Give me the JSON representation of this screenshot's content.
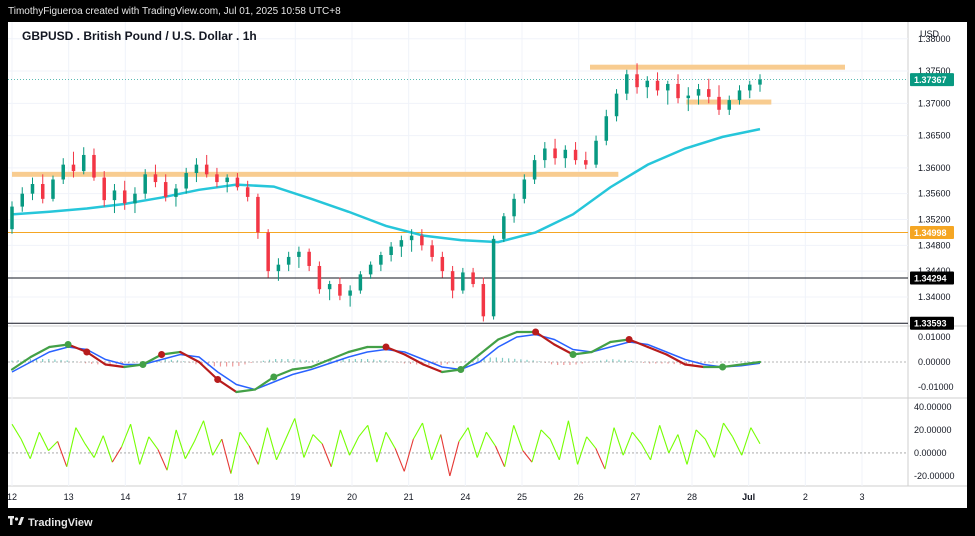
{
  "header": {
    "created_line": "TimothyFigueroa created with TradingView.com, Jul 01, 2025 10:58 UTC+8",
    "brand": "TradingView"
  },
  "chart_data": {
    "type": "candlestick",
    "title": "GBPUSD . British Pound / U.S. Dollar . 1h",
    "currency_label": "USD",
    "price_axis": {
      "range": [
        1.3355,
        1.3826
      ],
      "ticks": [
        "1.38000",
        "1.37500",
        "1.37000",
        "1.36500",
        "1.36000",
        "1.35600",
        "1.35200",
        "1.34800",
        "1.34400",
        "1.34000"
      ],
      "tick_values": [
        1.38,
        1.375,
        1.37,
        1.365,
        1.36,
        1.356,
        1.352,
        1.348,
        1.344,
        1.34
      ]
    },
    "price_labels": [
      {
        "text": "1.37367",
        "value": 1.37367,
        "color": "#089981"
      },
      {
        "text": "1.34998",
        "value": 1.34998,
        "color": "#f5a623"
      },
      {
        "text": "1.34294",
        "value": 1.34294,
        "color": "#000000"
      },
      {
        "text": "1.33593",
        "value": 1.33593,
        "color": "#000000"
      }
    ],
    "x_axis": {
      "labels": [
        "12",
        "13",
        "14",
        "17",
        "18",
        "19",
        "20",
        "21",
        "24",
        "25",
        "26",
        "27",
        "28",
        "Jul",
        "2",
        "3"
      ],
      "positions": [
        0,
        1,
        2,
        3,
        4,
        5,
        6,
        7,
        8,
        9,
        10,
        11,
        12,
        13,
        14,
        15
      ],
      "range": [
        0,
        15
      ]
    },
    "candles_ohlc": [
      [
        1.3505,
        1.3548,
        1.3498,
        1.354
      ],
      [
        1.354,
        1.357,
        1.3532,
        1.356
      ],
      [
        1.356,
        1.3585,
        1.355,
        1.3575
      ],
      [
        1.3575,
        1.359,
        1.3545,
        1.3552
      ],
      [
        1.3552,
        1.3588,
        1.3548,
        1.3582
      ],
      [
        1.3582,
        1.3615,
        1.3575,
        1.3605
      ],
      [
        1.3605,
        1.3625,
        1.3585,
        1.3595
      ],
      [
        1.3595,
        1.3632,
        1.359,
        1.362
      ],
      [
        1.362,
        1.363,
        1.358,
        1.3585
      ],
      [
        1.3585,
        1.3595,
        1.354,
        1.355
      ],
      [
        1.355,
        1.3575,
        1.353,
        1.3565
      ],
      [
        1.3565,
        1.358,
        1.3535,
        1.3545
      ],
      [
        1.3545,
        1.357,
        1.353,
        1.356
      ],
      [
        1.356,
        1.3598,
        1.3552,
        1.359
      ],
      [
        1.359,
        1.3605,
        1.357,
        1.3578
      ],
      [
        1.3578,
        1.359,
        1.3548,
        1.3555
      ],
      [
        1.3555,
        1.3575,
        1.354,
        1.3568
      ],
      [
        1.3568,
        1.36,
        1.356,
        1.3592
      ],
      [
        1.3592,
        1.3615,
        1.3578,
        1.3605
      ],
      [
        1.3605,
        1.362,
        1.3585,
        1.359
      ],
      [
        1.359,
        1.36,
        1.357,
        1.3578
      ],
      [
        1.3578,
        1.359,
        1.3562,
        1.3585
      ],
      [
        1.3585,
        1.3592,
        1.3565,
        1.357
      ],
      [
        1.357,
        1.358,
        1.3548,
        1.3555
      ],
      [
        1.3555,
        1.356,
        1.349,
        1.35
      ],
      [
        1.35,
        1.3505,
        1.343,
        1.344
      ],
      [
        1.344,
        1.346,
        1.3425,
        1.345
      ],
      [
        1.345,
        1.347,
        1.344,
        1.3462
      ],
      [
        1.3462,
        1.3478,
        1.3445,
        1.347
      ],
      [
        1.347,
        1.3475,
        1.344,
        1.3448
      ],
      [
        1.3448,
        1.3455,
        1.3405,
        1.3412
      ],
      [
        1.3412,
        1.3425,
        1.3395,
        1.342
      ],
      [
        1.342,
        1.343,
        1.3395,
        1.3402
      ],
      [
        1.3402,
        1.3418,
        1.3385,
        1.341
      ],
      [
        1.341,
        1.344,
        1.3405,
        1.3435
      ],
      [
        1.3435,
        1.3455,
        1.3428,
        1.345
      ],
      [
        1.345,
        1.347,
        1.344,
        1.3465
      ],
      [
        1.3465,
        1.3485,
        1.3455,
        1.3478
      ],
      [
        1.3478,
        1.3495,
        1.3462,
        1.3488
      ],
      [
        1.3488,
        1.3505,
        1.347,
        1.3495
      ],
      [
        1.3495,
        1.3505,
        1.3472,
        1.348
      ],
      [
        1.348,
        1.3488,
        1.3455,
        1.3462
      ],
      [
        1.3462,
        1.347,
        1.343,
        1.344
      ],
      [
        1.344,
        1.3448,
        1.3398,
        1.341
      ],
      [
        1.341,
        1.3445,
        1.3405,
        1.3438
      ],
      [
        1.3438,
        1.3445,
        1.3415,
        1.342
      ],
      [
        1.342,
        1.343,
        1.3362,
        1.337
      ],
      [
        1.337,
        1.3495,
        1.3365,
        1.349
      ],
      [
        1.349,
        1.353,
        1.3485,
        1.3525
      ],
      [
        1.3525,
        1.356,
        1.3515,
        1.3552
      ],
      [
        1.3552,
        1.359,
        1.3545,
        1.3582
      ],
      [
        1.3582,
        1.362,
        1.3575,
        1.3612
      ],
      [
        1.3612,
        1.364,
        1.36,
        1.363
      ],
      [
        1.363,
        1.3645,
        1.3605,
        1.3615
      ],
      [
        1.3615,
        1.3635,
        1.36,
        1.3628
      ],
      [
        1.3628,
        1.364,
        1.3605,
        1.3612
      ],
      [
        1.3612,
        1.3625,
        1.3598,
        1.3605
      ],
      [
        1.3605,
        1.365,
        1.36,
        1.3642
      ],
      [
        1.3642,
        1.369,
        1.3635,
        1.368
      ],
      [
        1.368,
        1.3722,
        1.3672,
        1.3715
      ],
      [
        1.3715,
        1.3752,
        1.3705,
        1.3745
      ],
      [
        1.3745,
        1.3762,
        1.3715,
        1.3725
      ],
      [
        1.3725,
        1.3742,
        1.3708,
        1.3735
      ],
      [
        1.3735,
        1.3748,
        1.3712,
        1.372
      ],
      [
        1.372,
        1.3735,
        1.3698,
        1.373
      ],
      [
        1.373,
        1.3745,
        1.37,
        1.3708
      ],
      [
        1.3708,
        1.3725,
        1.3688,
        1.3712
      ],
      [
        1.3712,
        1.373,
        1.3698,
        1.3722
      ],
      [
        1.3722,
        1.3738,
        1.37,
        1.371
      ],
      [
        1.371,
        1.3728,
        1.3682,
        1.369
      ],
      [
        1.369,
        1.3712,
        1.3682,
        1.3705
      ],
      [
        1.3705,
        1.3728,
        1.3698,
        1.372
      ],
      [
        1.372,
        1.3735,
        1.3708,
        1.3729
      ],
      [
        1.3729,
        1.3745,
        1.3718,
        1.3737
      ]
    ],
    "sma": [
      1.3528,
      1.3532,
      1.3537,
      1.3544,
      1.3554,
      1.3566,
      1.3574,
      1.3571,
      1.3552,
      1.3532,
      1.351,
      1.3495,
      1.3488,
      1.3485,
      1.35,
      1.3528,
      1.357,
      1.3605,
      1.363,
      1.3648,
      1.366
    ],
    "support_resistance_zones": [
      {
        "value": 1.359,
        "from": 0.0,
        "to": 10.7
      },
      {
        "value": 1.3756,
        "from": 10.2,
        "to": 14.7
      },
      {
        "value": 1.3702,
        "from": 11.9,
        "to": 13.4
      }
    ],
    "horizontal_lines": [
      {
        "value": 1.34998,
        "color": "#f5a623"
      },
      {
        "value": 1.34294,
        "color": "#bbbbbb"
      },
      {
        "value": 1.33593,
        "color": "#bbbbbb"
      }
    ],
    "indicator1": {
      "axis": {
        "ticks": [
          "0.01000",
          "0.00000",
          "-0.01000"
        ],
        "tick_values": [
          0.01,
          0.0,
          -0.01
        ],
        "range": [
          -0.0128,
          0.0128
        ]
      },
      "line_a": [
        -0.003,
        0.002,
        0.006,
        0.007,
        0.004,
        -0.001,
        -0.002,
        -0.001,
        0.003,
        0.004,
        0.0,
        -0.007,
        -0.012,
        -0.011,
        -0.006,
        -0.003,
        -0.002,
        0.001,
        0.004,
        0.006,
        0.006,
        0.003,
        -0.001,
        -0.004,
        -0.003,
        0.003,
        0.009,
        0.012,
        0.012,
        0.007,
        0.003,
        0.004,
        0.008,
        0.009,
        0.006,
        0.003,
        -0.001,
        -0.002,
        -0.002,
        -0.001,
        0.0
      ],
      "line_b": [
        -0.004,
        0.0,
        0.004,
        0.006,
        0.005,
        0.001,
        -0.001,
        -0.001,
        0.001,
        0.003,
        0.002,
        -0.004,
        -0.009,
        -0.011,
        -0.008,
        -0.005,
        -0.003,
        -0.0005,
        0.002,
        0.004,
        0.005,
        0.004,
        0.001,
        -0.002,
        -0.003,
        0.0,
        0.006,
        0.01,
        0.011,
        0.009,
        0.005,
        0.004,
        0.006,
        0.008,
        0.007,
        0.004,
        0.001,
        -0.001,
        -0.002,
        -0.0015,
        -0.0005
      ],
      "dots": [
        {
          "i": 3,
          "color": "#43a047"
        },
        {
          "i": 4,
          "color": "#b71c1c"
        },
        {
          "i": 7,
          "color": "#43a047"
        },
        {
          "i": 8,
          "color": "#b71c1c"
        },
        {
          "i": 11,
          "color": "#b71c1c"
        },
        {
          "i": 14,
          "color": "#43a047"
        },
        {
          "i": 20,
          "color": "#b71c1c"
        },
        {
          "i": 24,
          "color": "#43a047"
        },
        {
          "i": 28,
          "color": "#b71c1c"
        },
        {
          "i": 30,
          "color": "#43a047"
        },
        {
          "i": 33,
          "color": "#b71c1c"
        },
        {
          "i": 38,
          "color": "#43a047"
        }
      ]
    },
    "indicator2": {
      "axis": {
        "ticks": [
          "40.00000",
          "20.00000",
          "0.00000",
          "-20.00000"
        ],
        "tick_values": [
          40,
          20,
          0,
          -20
        ],
        "range": [
          -27,
          46
        ]
      },
      "values": [
        25,
        12,
        -5,
        18,
        2,
        10,
        -12,
        22,
        8,
        -4,
        15,
        -8,
        5,
        25,
        -10,
        14,
        3,
        -15,
        20,
        -5,
        10,
        28,
        -2,
        12,
        -18,
        18,
        6,
        -10,
        22,
        -6,
        12,
        30,
        -4,
        16,
        8,
        -12,
        20,
        -2,
        14,
        24,
        -8,
        18,
        4,
        -16,
        12,
        26,
        -6,
        16,
        -20,
        10,
        22,
        -4,
        18,
        6,
        -12,
        24,
        2,
        -8,
        20,
        12,
        -6,
        28,
        -10,
        14,
        4,
        -14,
        22,
        -2,
        18,
        8,
        -6,
        24,
        0,
        16,
        -10,
        20,
        12,
        -4,
        26,
        14,
        -2,
        22,
        8
      ]
    }
  }
}
